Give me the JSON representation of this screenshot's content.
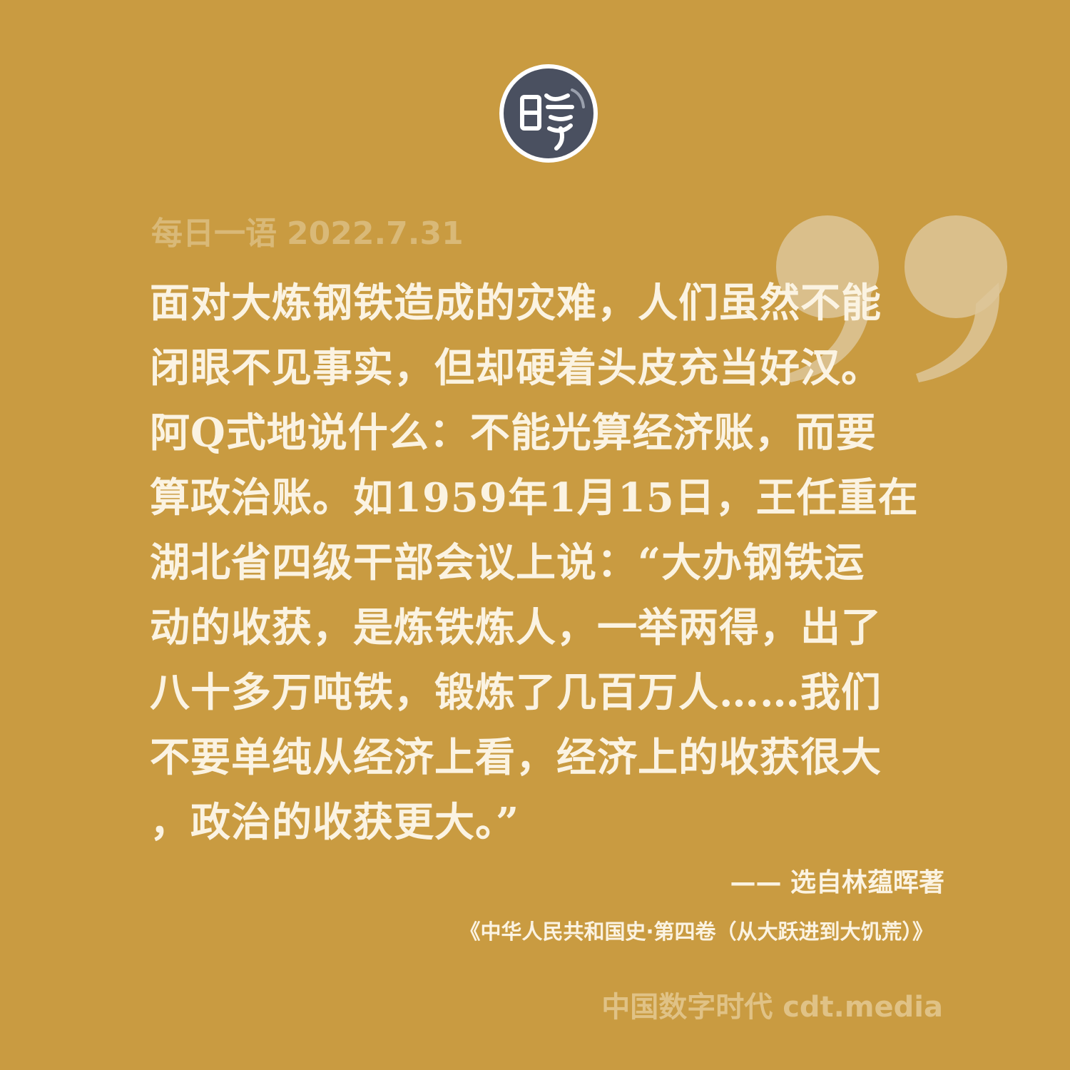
{
  "logo": {
    "glyph": "曉"
  },
  "header": {
    "series": "每日一语",
    "date": "2022.7.31"
  },
  "quote": {
    "lines": [
      "面对大炼钢铁造成的灾难，人们虽然不能",
      "闭眼不见事实，但却硬着头皮充当好汉。",
      "阿Q式地说什么：不能光算经济账，而要",
      "算政治账。如1959年1月15日，王任重在",
      "湖北省四级干部会议上说：“大办钢铁运",
      "动的收获，是炼铁炼人，一举两得，出了",
      "八十多万吨铁，锻炼了几百万人……我们",
      "不要单纯从经济上看，经济上的收获很大",
      "，政治的收获更大。”"
    ]
  },
  "attribution": {
    "source": "—— 选自林蕴晖著",
    "book": "《中华人民共和国史·第四卷（从大跃进到大饥荒）》"
  },
  "footer": {
    "brand": "中国数字时代 cdt.media"
  },
  "colors": {
    "background": "#c99b41",
    "text": "#fbf3e2",
    "muted": "#d9b978",
    "logo_fill": "#4a5060"
  }
}
